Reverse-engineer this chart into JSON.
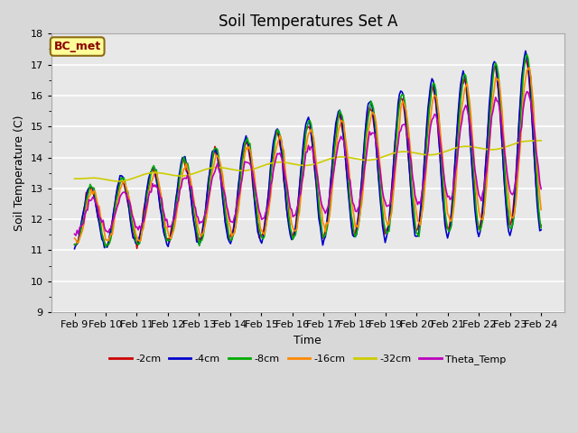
{
  "title": "Soil Temperatures Set A",
  "xlabel": "Time",
  "ylabel": "Soil Temperature (C)",
  "ylim": [
    9.0,
    18.0
  ],
  "yticks": [
    9.0,
    10.0,
    11.0,
    12.0,
    13.0,
    14.0,
    15.0,
    16.0,
    17.0,
    18.0
  ],
  "fig_bg_color": "#d8d8d8",
  "plot_bg_color": "#e8e8e8",
  "annotation_label": "BC_met",
  "annotation_color": "#8b0000",
  "annotation_bg": "#ffff99",
  "annotation_edge": "#8b6914",
  "legend_entries": [
    "-2cm",
    "-4cm",
    "-8cm",
    "-16cm",
    "-32cm",
    "Theta_Temp"
  ],
  "line_colors": {
    "-2cm": "#cc0000",
    "-4cm": "#0000cc",
    "-8cm": "#00aa00",
    "-16cm": "#ff8800",
    "-32cm": "#cccc00",
    "Theta_Temp": "#bb00bb"
  },
  "x_labels": [
    "Feb 9",
    "Feb 10",
    "Feb 11",
    "Feb 12",
    "Feb 13",
    "Feb 14",
    "Feb 15",
    "Feb 16",
    "Feb 17",
    "Feb 18",
    "Feb 19",
    "Feb 20",
    "Feb 21",
    "Feb 22",
    "Feb 23",
    "Feb 24"
  ],
  "n_points": 360,
  "line_width": 1.2,
  "title_fontsize": 12,
  "axis_fontsize": 9,
  "tick_fontsize": 8,
  "legend_fontsize": 8
}
